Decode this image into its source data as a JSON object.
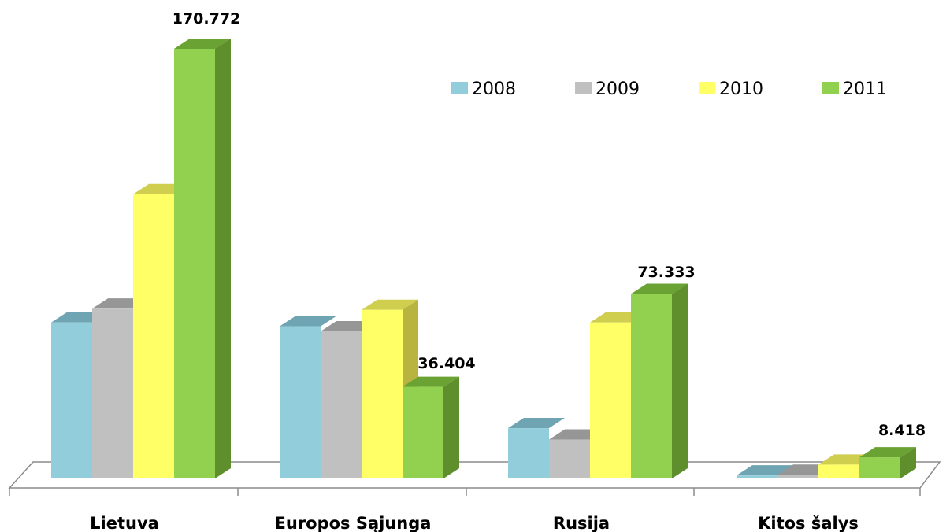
{
  "chart_data": {
    "type": "bar",
    "categories": [
      "Lietuva",
      "Europos Sąjunga",
      "Rusija",
      "Kitos šalys"
    ],
    "series": [
      {
        "name": "2008",
        "values": [
          62.0,
          60.5,
          20.0,
          1.2
        ]
      },
      {
        "name": "2009",
        "values": [
          67.5,
          58.5,
          15.5,
          1.5
        ]
      },
      {
        "name": "2010",
        "values": [
          113.0,
          67.0,
          62.0,
          5.5
        ]
      },
      {
        "name": "2011",
        "values": [
          170.772,
          36.404,
          73.333,
          8.418
        ]
      }
    ],
    "data_labels": [
      {
        "category": "Lietuva",
        "series": "2011",
        "text": "170.772"
      },
      {
        "category": "Europos Sąjunga",
        "series": "2011",
        "text": "36.404"
      },
      {
        "category": "Rusija",
        "series": "2011",
        "text": "73.333"
      },
      {
        "category": "Kitos šalys",
        "series": "2011",
        "text": "8.418"
      }
    ],
    "legend_position": "top-right",
    "grid": false,
    "colors": {
      "2008": {
        "front": "#92cddc",
        "top": "#6fa4b3"
      },
      "2009": {
        "front": "#c0c0c0",
        "top": "#969696"
      },
      "2010": {
        "front": "#ffff66",
        "top": "#d0ce4f",
        "side": "#b8b43f"
      },
      "2011": {
        "front": "#92d050",
        "top": "#6aa333",
        "side": "#5e8f2c"
      }
    }
  }
}
